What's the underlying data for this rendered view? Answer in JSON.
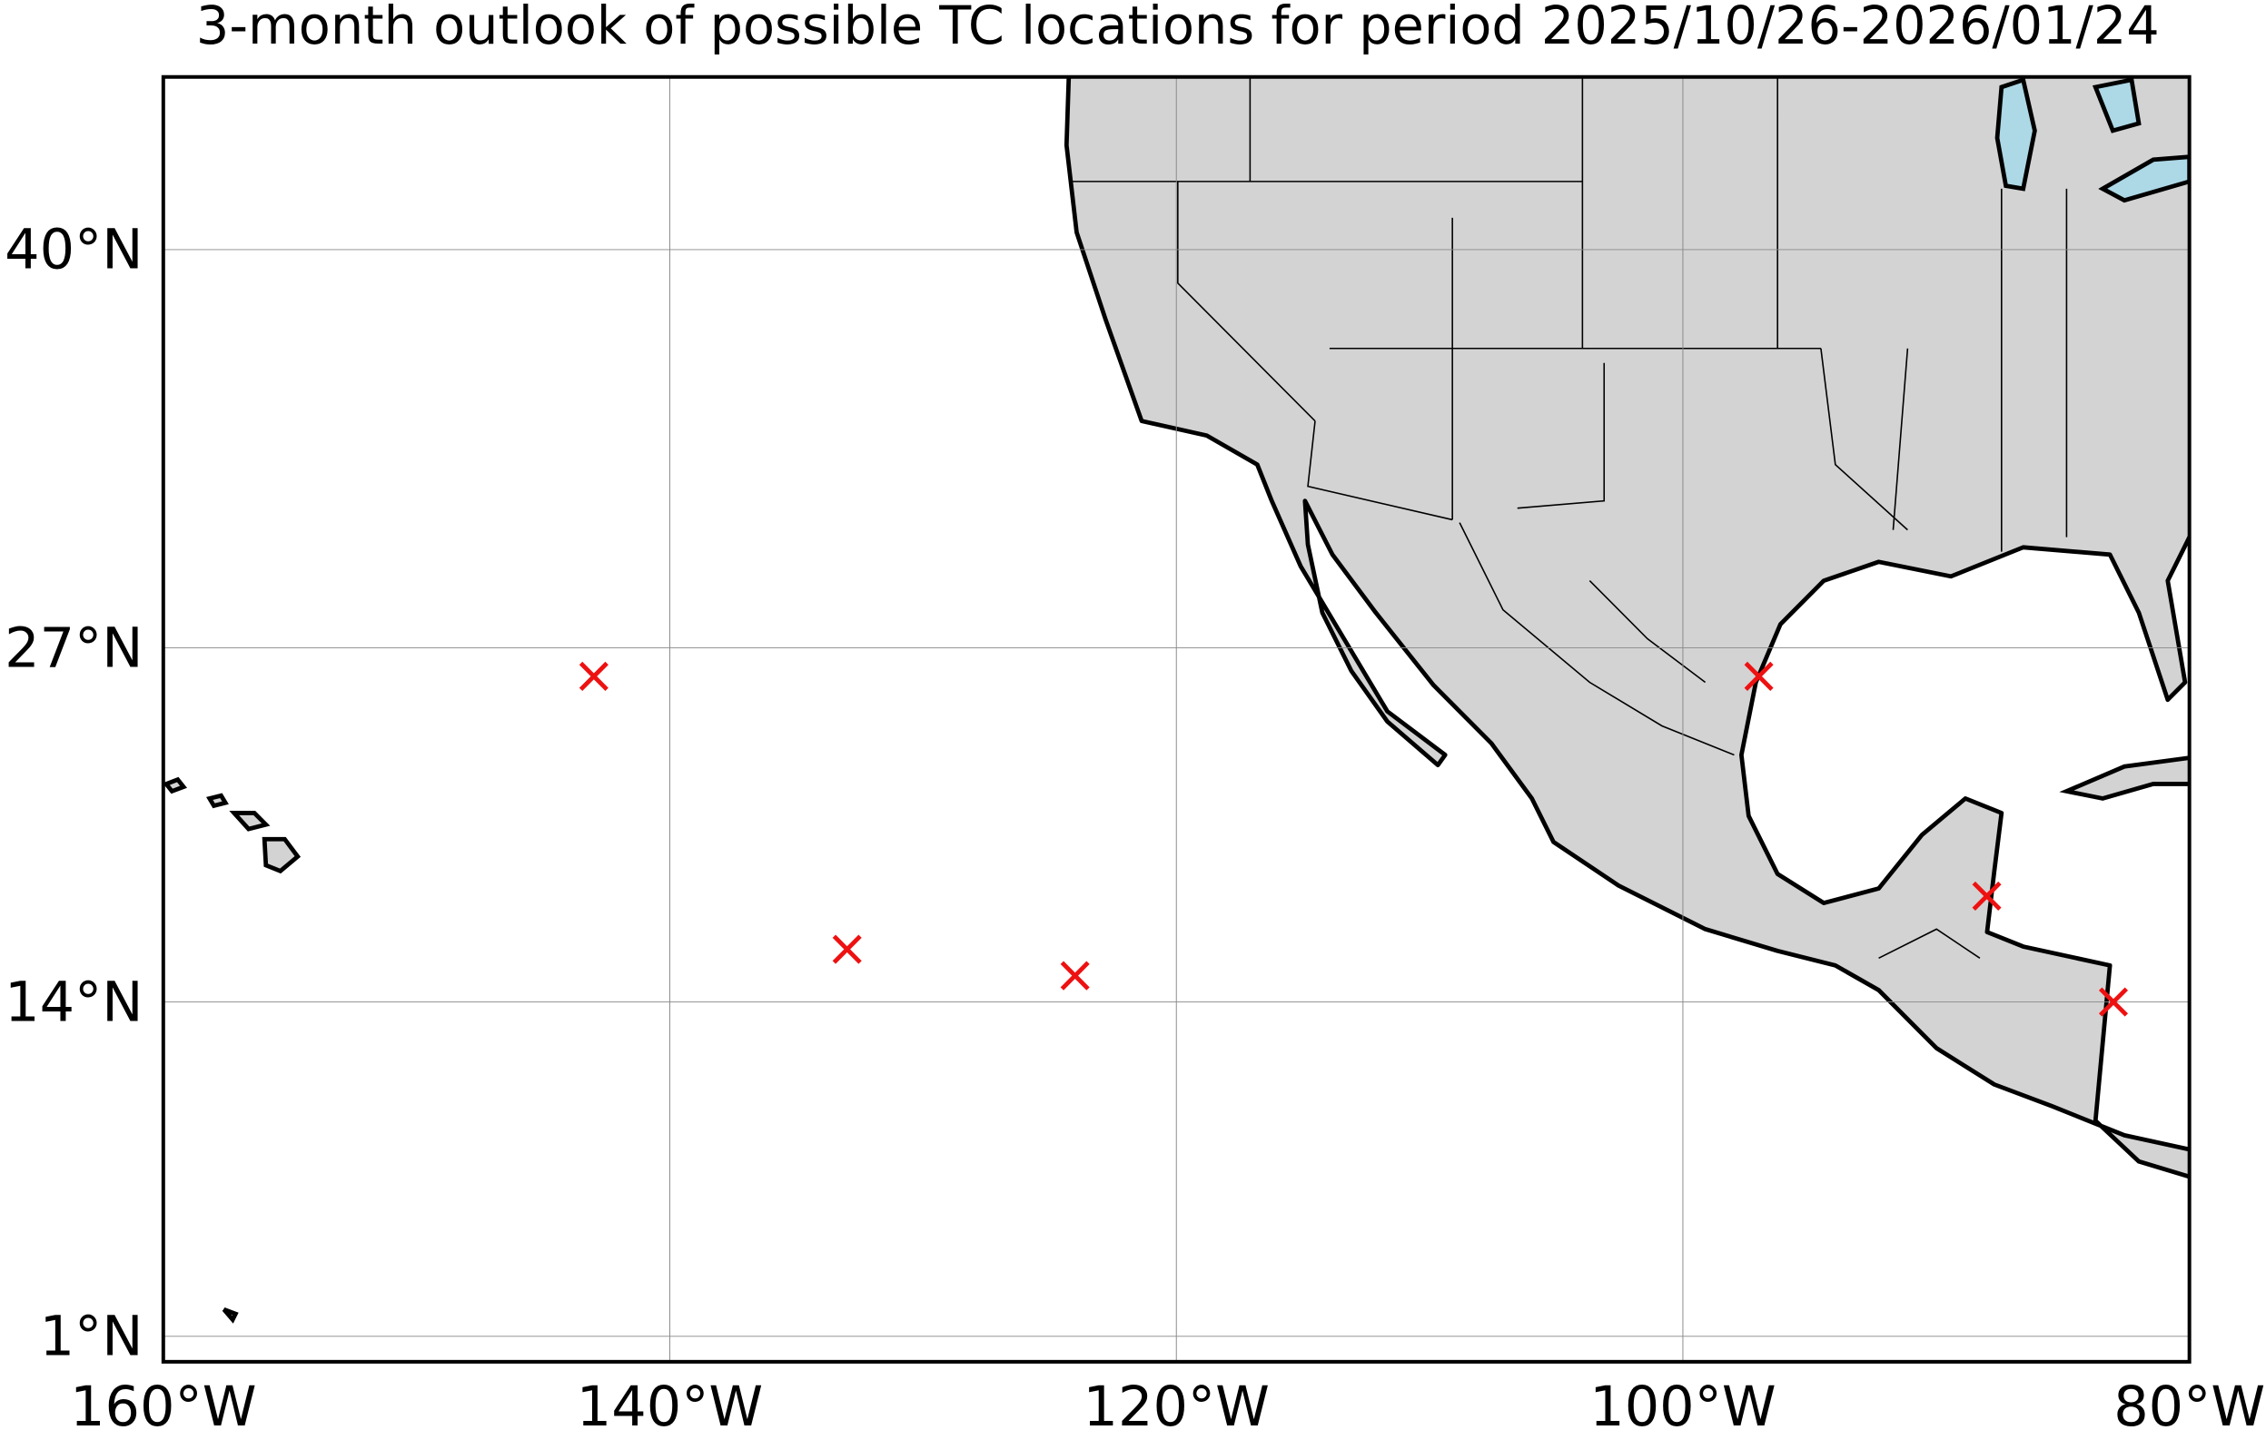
{
  "chart_data": {
    "type": "scatter",
    "projection": "mercator",
    "title": "3-month outlook of possible TC locations for period 2025/10/26-2026/01/24",
    "x": [
      -143,
      -133,
      -124,
      -97,
      -88,
      -83
    ],
    "values": [
      26,
      16,
      15,
      26,
      18,
      14
    ],
    "color": "#ee1111",
    "xlim": [
      -160,
      -80
    ],
    "ylim": [
      0,
      45
    ],
    "xticks": [
      {
        "value": -160,
        "label": "160°W"
      },
      {
        "value": -140,
        "label": "140°W"
      },
      {
        "value": -120,
        "label": "120°W"
      },
      {
        "value": -100,
        "label": "100°W"
      },
      {
        "value": -80,
        "label": "80°W"
      }
    ],
    "yticks": [
      {
        "value": 1,
        "label": "1°N"
      },
      {
        "value": 14,
        "label": "14°N"
      },
      {
        "value": 27,
        "label": "27°N"
      },
      {
        "value": 40,
        "label": "40°N"
      }
    ],
    "grid": true
  }
}
